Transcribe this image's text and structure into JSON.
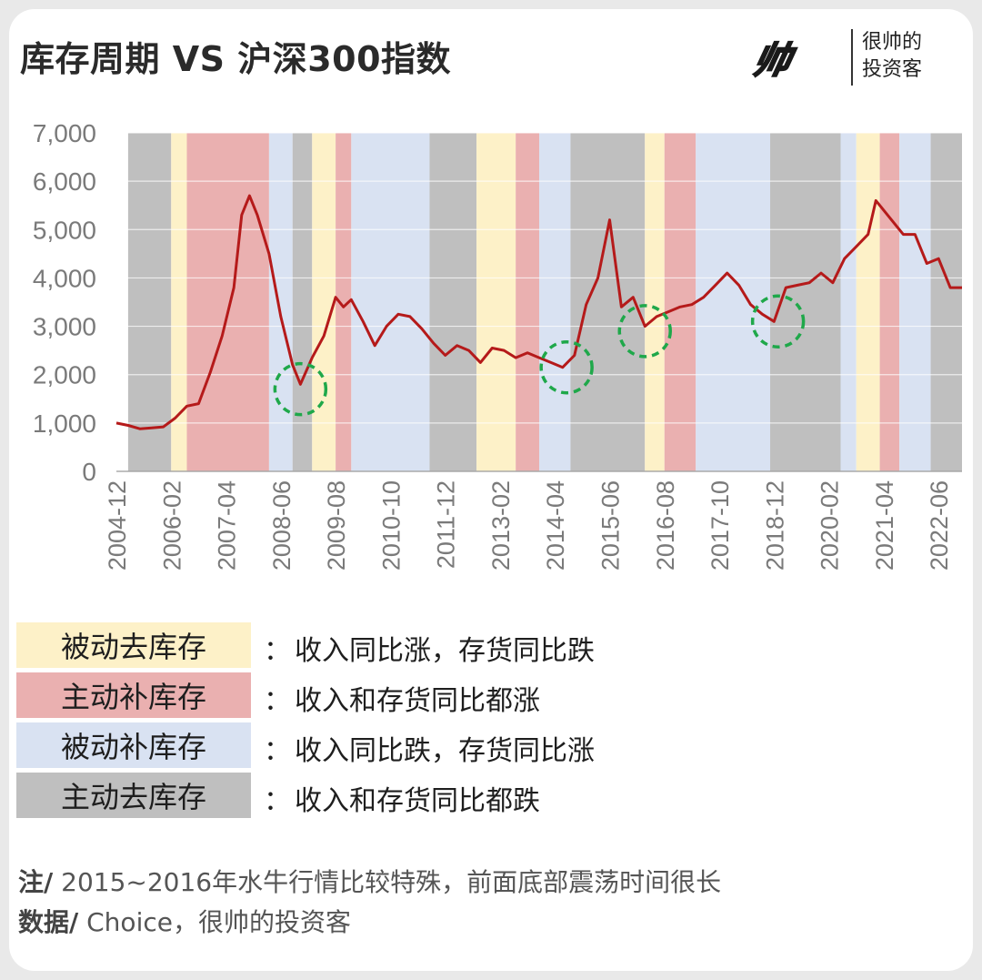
{
  "header": {
    "title": "库存周期 VS 沪深300指数"
  },
  "brand": {
    "logo_text": "帅",
    "line1": "很帅的",
    "line2": "投资客"
  },
  "chart_data": {
    "type": "line",
    "title": "库存周期 VS 沪深300指数",
    "ylim": [
      0,
      7000
    ],
    "yticks": [
      "0",
      "1,000",
      "2,000",
      "3,000",
      "4,000",
      "5,000",
      "6,000",
      "7,000"
    ],
    "xticks": [
      "2004-12",
      "2006-02",
      "2007-04",
      "2008-06",
      "2009-08",
      "2010-10",
      "2011-12",
      "2013-02",
      "2014-04",
      "2015-06",
      "2016-08",
      "2017-10",
      "2018-12",
      "2020-02",
      "2021-04",
      "2022-06"
    ],
    "series": [
      {
        "line_color": "#b51a1a",
        "x": [
          "2004-12",
          "2005-03",
          "2005-06",
          "2005-09",
          "2005-12",
          "2006-03",
          "2006-06",
          "2006-09",
          "2006-12",
          "2007-03",
          "2007-06",
          "2007-08",
          "2007-10",
          "2007-12",
          "2008-03",
          "2008-06",
          "2008-09",
          "2008-11",
          "2009-02",
          "2009-05",
          "2009-08",
          "2009-10",
          "2009-12",
          "2010-03",
          "2010-06",
          "2010-09",
          "2010-12",
          "2011-03",
          "2011-06",
          "2011-09",
          "2011-12",
          "2012-03",
          "2012-06",
          "2012-09",
          "2012-12",
          "2013-03",
          "2013-06",
          "2013-09",
          "2013-12",
          "2014-03",
          "2014-06",
          "2014-09",
          "2014-12",
          "2015-03",
          "2015-06",
          "2015-09",
          "2015-12",
          "2016-03",
          "2016-06",
          "2016-09",
          "2016-12",
          "2017-03",
          "2017-06",
          "2017-09",
          "2017-12",
          "2018-03",
          "2018-06",
          "2018-09",
          "2018-12",
          "2019-03",
          "2019-06",
          "2019-09",
          "2019-12",
          "2020-03",
          "2020-06",
          "2020-09",
          "2020-12",
          "2021-02",
          "2021-06",
          "2021-09",
          "2021-12",
          "2022-03",
          "2022-06",
          "2022-09",
          "2022-12"
        ],
        "values": [
          1000,
          950,
          880,
          900,
          920,
          1100,
          1350,
          1400,
          2050,
          2800,
          3800,
          5300,
          5700,
          5300,
          4500,
          3200,
          2200,
          1800,
          2350,
          2800,
          3600,
          3400,
          3550,
          3100,
          2600,
          3000,
          3250,
          3200,
          2950,
          2650,
          2400,
          2600,
          2500,
          2250,
          2550,
          2500,
          2350,
          2450,
          2350,
          2250,
          2150,
          2400,
          3450,
          4000,
          5200,
          3400,
          3600,
          3000,
          3200,
          3300,
          3400,
          3450,
          3600,
          3850,
          4100,
          3850,
          3450,
          3250,
          3100,
          3800,
          3850,
          3900,
          4100,
          3900,
          4400,
          4650,
          4900,
          5600,
          5200,
          4900,
          4900,
          4300,
          4400,
          3800,
          3800
        ]
      }
    ],
    "phases_note": "background bands show inventory cycle phase by date",
    "phases": [
      {
        "start": "2005-03",
        "end": "2006-02",
        "phase": "主动去库存"
      },
      {
        "start": "2006-02",
        "end": "2006-06",
        "phase": "被动去库存"
      },
      {
        "start": "2006-06",
        "end": "2008-03",
        "phase": "主动补库存"
      },
      {
        "start": "2008-03",
        "end": "2008-09",
        "phase": "被动补库存"
      },
      {
        "start": "2008-09",
        "end": "2009-02",
        "phase": "主动去库存"
      },
      {
        "start": "2009-02",
        "end": "2009-08",
        "phase": "被动去库存"
      },
      {
        "start": "2009-08",
        "end": "2009-12",
        "phase": "主动补库存"
      },
      {
        "start": "2009-12",
        "end": "2011-08",
        "phase": "被动补库存"
      },
      {
        "start": "2011-08",
        "end": "2012-08",
        "phase": "主动去库存"
      },
      {
        "start": "2012-08",
        "end": "2013-06",
        "phase": "被动去库存"
      },
      {
        "start": "2013-06",
        "end": "2013-12",
        "phase": "主动补库存"
      },
      {
        "start": "2013-12",
        "end": "2014-08",
        "phase": "被动补库存"
      },
      {
        "start": "2014-08",
        "end": "2016-03",
        "phase": "主动去库存"
      },
      {
        "start": "2016-03",
        "end": "2016-08",
        "phase": "被动去库存"
      },
      {
        "start": "2016-08",
        "end": "2017-04",
        "phase": "主动补库存"
      },
      {
        "start": "2017-04",
        "end": "2018-11",
        "phase": "被动补库存"
      },
      {
        "start": "2018-11",
        "end": "2020-05",
        "phase": "主动去库存"
      },
      {
        "start": "2020-05",
        "end": "2020-09",
        "phase": "被动补库存"
      },
      {
        "start": "2020-09",
        "end": "2021-03",
        "phase": "被动去库存"
      },
      {
        "start": "2021-03",
        "end": "2021-08",
        "phase": "主动补库存"
      },
      {
        "start": "2021-08",
        "end": "2022-04",
        "phase": "被动补库存"
      },
      {
        "start": "2022-04",
        "end": "2022-12",
        "phase": "主动去库存"
      }
    ],
    "highlighted_bottoms": [
      {
        "x": "2008-11",
        "y": 1700
      },
      {
        "x": "2014-07",
        "y": 2150
      },
      {
        "x": "2016-03",
        "y": 2900
      },
      {
        "x": "2019-01",
        "y": 3100
      }
    ]
  },
  "legend": [
    {
      "label": "被动去库存",
      "desc": "收入同比涨，存货同比跌",
      "color": "#fdf1c8"
    },
    {
      "label": "主动补库存",
      "desc": "收入和存货同比都涨",
      "color": "#eab0b0"
    },
    {
      "label": "被动补库存",
      "desc": "收入同比跌，存货同比涨",
      "color": "#d9e2f2"
    },
    {
      "label": "主动去库存",
      "desc": "收入和存货同比都跌",
      "color": "#bfbfbf"
    }
  ],
  "notes": {
    "note_label": "注/",
    "note_text": " 2015~2016年水牛行情比较特殊，前面底部震荡时间很长",
    "source_label": "数据/",
    "source_text": " Choice，很帅的投资客"
  },
  "colors": {
    "主动去库存": "#bfbfbf",
    "被动去库存": "#fdf1c8",
    "主动补库存": "#eab0b0",
    "被动补库存": "#d9e2f2",
    "line": "#b51a1a",
    "circle": "#1fa84a"
  }
}
